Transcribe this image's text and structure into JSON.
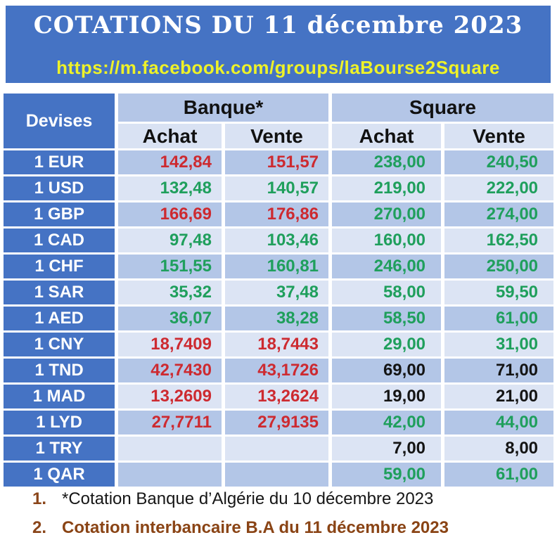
{
  "banner": {
    "title": "COTATIONS DU 11 décembre 2023",
    "url": "https://m.facebook.com/groups/laBourse2Square"
  },
  "table": {
    "devises_label": "Devises",
    "group_labels": [
      "Banque*",
      "Square"
    ],
    "sub_labels": [
      "Achat",
      "Vente",
      "Achat",
      "Vente"
    ],
    "rows": [
      {
        "devise": "1 EUR",
        "values": [
          "142,84",
          "151,57",
          "238,00",
          "240,50"
        ],
        "value_colors": [
          "red",
          "red",
          "green",
          "green"
        ]
      },
      {
        "devise": "1 USD",
        "values": [
          "132,48",
          "140,57",
          "219,00",
          "222,00"
        ],
        "value_colors": [
          "green",
          "green",
          "green",
          "green"
        ]
      },
      {
        "devise": "1 GBP",
        "values": [
          "166,69",
          "176,86",
          "270,00",
          "274,00"
        ],
        "value_colors": [
          "red",
          "red",
          "green",
          "green"
        ]
      },
      {
        "devise": "1 CAD",
        "values": [
          "97,48",
          "103,46",
          "160,00",
          "162,50"
        ],
        "value_colors": [
          "green",
          "green",
          "green",
          "green"
        ]
      },
      {
        "devise": "1 CHF",
        "values": [
          "151,55",
          "160,81",
          "246,00",
          "250,00"
        ],
        "value_colors": [
          "green",
          "green",
          "green",
          "green"
        ]
      },
      {
        "devise": "1 SAR",
        "values": [
          "35,32",
          "37,48",
          "58,00",
          "59,50"
        ],
        "value_colors": [
          "green",
          "green",
          "green",
          "green"
        ]
      },
      {
        "devise": "1 AED",
        "values": [
          "36,07",
          "38,28",
          "58,50",
          "61,00"
        ],
        "value_colors": [
          "green",
          "green",
          "green",
          "green"
        ]
      },
      {
        "devise": "1 CNY",
        "values": [
          "18,7409",
          "18,7443",
          "29,00",
          "31,00"
        ],
        "value_colors": [
          "red",
          "red",
          "green",
          "green"
        ]
      },
      {
        "devise": "1 TND",
        "values": [
          "42,7430",
          "43,1726",
          "69,00",
          "71,00"
        ],
        "value_colors": [
          "red",
          "red",
          "black",
          "black"
        ]
      },
      {
        "devise": "1 MAD",
        "values": [
          "13,2609",
          "13,2624",
          "19,00",
          "21,00"
        ],
        "value_colors": [
          "red",
          "red",
          "black",
          "black"
        ]
      },
      {
        "devise": "1 LYD",
        "values": [
          "27,7711",
          "27,9135",
          "42,00",
          "44,00"
        ],
        "value_colors": [
          "red",
          "red",
          "green",
          "green"
        ]
      },
      {
        "devise": "1 TRY",
        "values": [
          "",
          "",
          "7,00",
          "8,00"
        ],
        "value_colors": [
          "black",
          "black",
          "black",
          "black"
        ]
      },
      {
        "devise": "1 QAR",
        "values": [
          "",
          "",
          "59,00",
          "61,00"
        ],
        "value_colors": [
          "green",
          "green",
          "green",
          "green"
        ]
      }
    ]
  },
  "footnotes": [
    {
      "num": "1.",
      "text": "*Cotation Banque d’Algérie du 10 décembre 2023"
    },
    {
      "num": "2.",
      "text": "Cotation interbancaire B.A du 11 décembre 2023"
    }
  ],
  "colors": {
    "accent_blue": "#4573c4",
    "header_light_blue": "#b4c6e7",
    "subheader_blue": "#d9e2f3",
    "row_dark": "#b3c6e7",
    "row_light": "#dce4f4",
    "rate_up_red": "#cd2a30",
    "rate_down_green": "#1f9f5c",
    "url_yellow": "#eef228",
    "footnote_brown": "#8a4519"
  }
}
